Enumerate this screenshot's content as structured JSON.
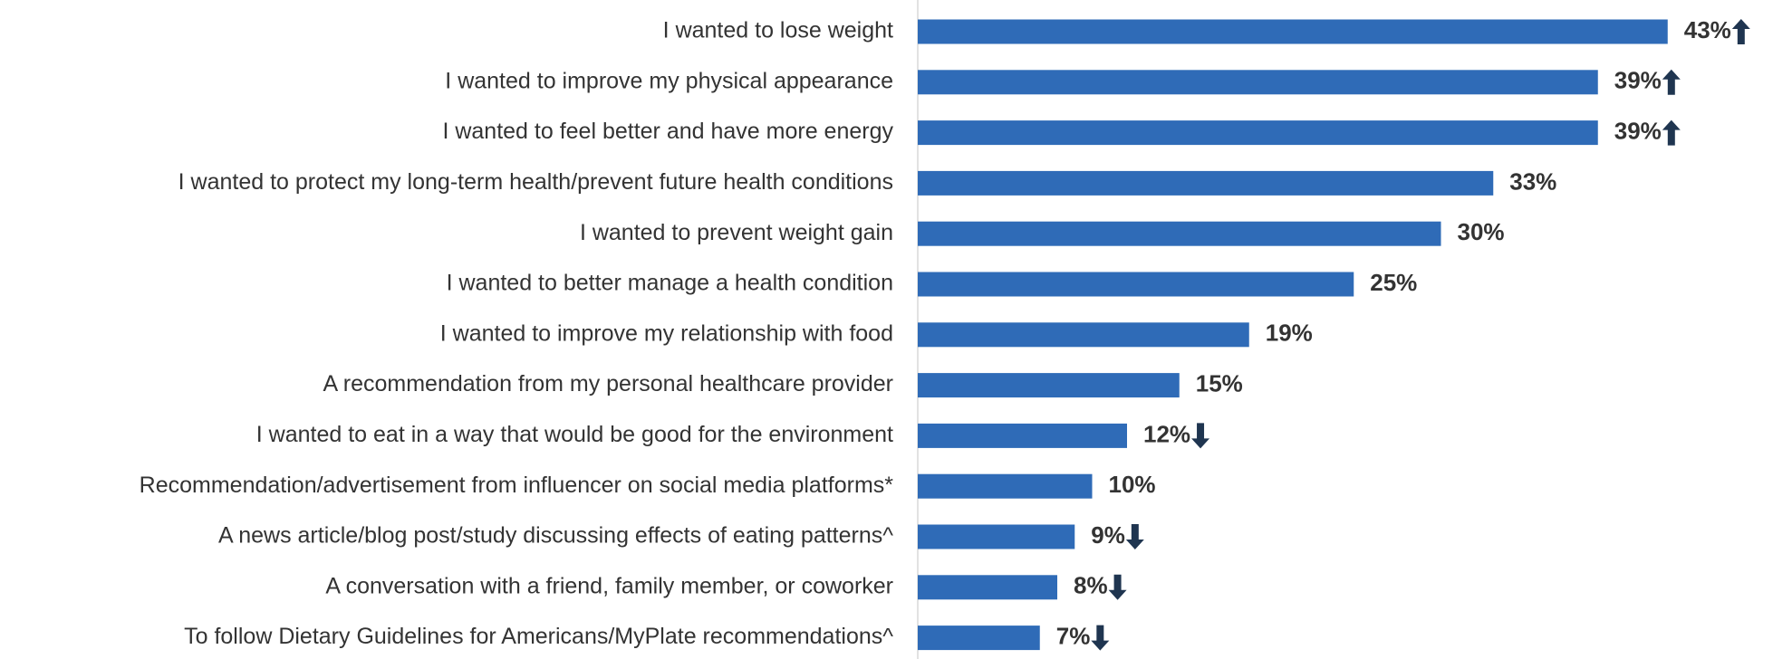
{
  "chart_data": {
    "type": "bar",
    "orientation": "horizontal",
    "categories": [
      "I wanted to lose weight",
      "I wanted to improve my physical appearance",
      "I wanted to feel better and have more energy",
      "I wanted to protect my long-term health/prevent future health conditions",
      "I wanted to prevent weight gain",
      "I wanted to better manage a health condition",
      "I wanted to improve my relationship with food",
      "A recommendation from my personal healthcare provider",
      "I wanted to eat in a way that would be good for the environment",
      "Recommendation/advertisement from influencer on social media platforms*",
      "A news article/blog post/study discussing effects of eating patterns^",
      "A conversation with a friend, family member, or coworker",
      "To follow Dietary Guidelines for Americans/MyPlate recommendations^"
    ],
    "values": [
      43,
      39,
      39,
      33,
      30,
      25,
      19,
      15,
      12,
      10,
      9,
      8,
      7
    ],
    "value_labels": [
      "43%",
      "39%",
      "39%",
      "33%",
      "30%",
      "25%",
      "19%",
      "15%",
      "12%",
      "10%",
      "9%",
      "8%",
      "7%"
    ],
    "trend": [
      "up",
      "up",
      "up",
      null,
      null,
      null,
      null,
      null,
      "down",
      null,
      "down",
      "down",
      "down"
    ],
    "color": "#2f6bb7",
    "trend_color": "#1f3550"
  }
}
